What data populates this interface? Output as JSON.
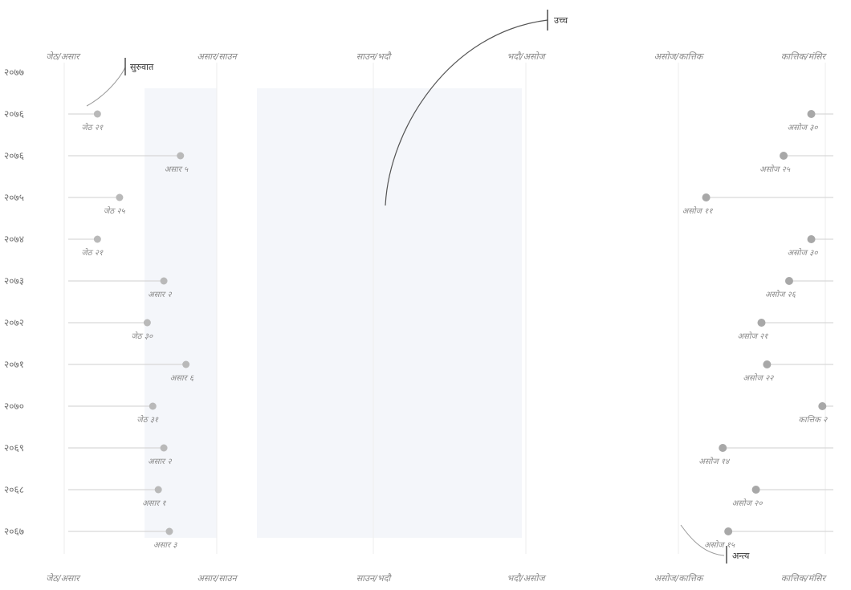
{
  "chart_data": {
    "type": "scatter",
    "month_ticks": [
      "जेठ/असार",
      "असार/साउन",
      "साउन/भदौ",
      "भदौ/असोज",
      "असोज/कात्तिक",
      "कात्तिक/मंसिर"
    ],
    "years": [
      "२०७७",
      "२०७६",
      "२०७६",
      "२०७५",
      "२०७४",
      "२०७३",
      "२०७२",
      "२०७१",
      "२०७०",
      "२०६९",
      "२०६८",
      "२०६७"
    ],
    "onset": [
      null,
      {
        "label": "जेठ २१",
        "day": 21
      },
      {
        "label": "असार ५",
        "day": 36
      },
      {
        "label": "जेठ २५",
        "day": 25
      },
      {
        "label": "जेठ २१",
        "day": 21
      },
      {
        "label": "असार २",
        "day": 33
      },
      {
        "label": "जेठ ३०",
        "day": 30
      },
      {
        "label": "असार ६",
        "day": 37
      },
      {
        "label": "जेठ ३१",
        "day": 31
      },
      {
        "label": "असार २",
        "day": 33
      },
      {
        "label": "असार १",
        "day": 32
      },
      {
        "label": "असार ३",
        "day": 34
      }
    ],
    "withdrawal": [
      null,
      {
        "label": "असोज ३०",
        "day": 150
      },
      {
        "label": "असोज २५",
        "day": 145
      },
      {
        "label": "असोज ११",
        "day": 131
      },
      {
        "label": "असोज ३०",
        "day": 150
      },
      {
        "label": "असोज २६",
        "day": 146
      },
      {
        "label": "असोज २१",
        "day": 141
      },
      {
        "label": "असोज २२",
        "day": 142
      },
      {
        "label": "कात्तिक २",
        "day": 152
      },
      {
        "label": "असोज १४",
        "day": 134
      },
      {
        "label": "असोज २०",
        "day": 140
      },
      {
        "label": "असोज १५",
        "day": 135
      }
    ],
    "annotations": {
      "start": "सुरुवात",
      "peak": "उच्च",
      "end": "अन्त्य"
    }
  }
}
